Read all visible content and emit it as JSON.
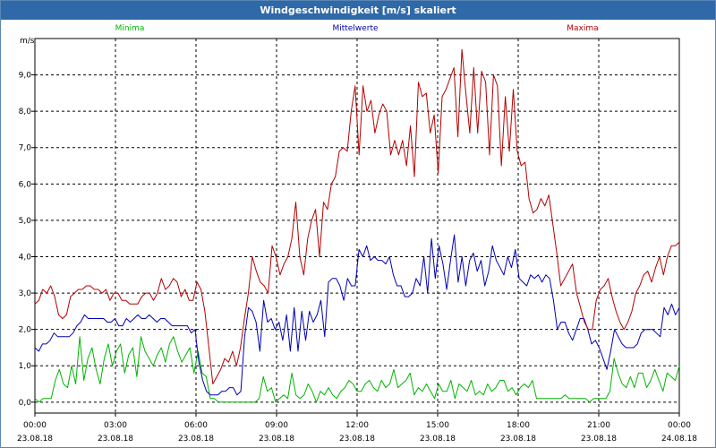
{
  "window": {
    "title": "Windgeschwindigkeit [m/s] skaliert"
  },
  "chart_data": {
    "type": "line",
    "ylabel": "m/s",
    "ylim": [
      -0.3,
      10.0
    ],
    "yticks": [
      "0,0",
      "1,0",
      "2,0",
      "3,0",
      "4,0",
      "5,0",
      "6,0",
      "7,0",
      "8,0",
      "9,0"
    ],
    "xlim": [
      0,
      24
    ],
    "xticks": [
      {
        "time": "00:00",
        "date": "23.08.18"
      },
      {
        "time": "03:00",
        "date": "23.08.18"
      },
      {
        "time": "06:00",
        "date": "23.08.18"
      },
      {
        "time": "09:00",
        "date": "23.08.18"
      },
      {
        "time": "12:00",
        "date": "23.08.18"
      },
      {
        "time": "15:00",
        "date": "23.08.18"
      },
      {
        "time": "18:00",
        "date": "23.08.18"
      },
      {
        "time": "21:00",
        "date": "23.08.18"
      },
      {
        "time": "00:00",
        "date": "24.08.18"
      }
    ],
    "grid": true,
    "legend_position": "top",
    "series": [
      {
        "name": "Minima",
        "color": "#00b400",
        "values": [
          0.1,
          0.0,
          0.1,
          0.1,
          0.1,
          0.6,
          0.9,
          0.5,
          0.4,
          1.0,
          0.5,
          1.8,
          0.6,
          1.2,
          1.5,
          0.9,
          0.5,
          1.2,
          1.6,
          1.0,
          1.4,
          1.6,
          0.8,
          1.3,
          1.5,
          0.7,
          1.8,
          1.4,
          1.2,
          1.0,
          1.3,
          1.5,
          1.1,
          1.6,
          1.8,
          1.4,
          1.1,
          1.3,
          1.5,
          0.8,
          1.4,
          0.8,
          0.7,
          0.1,
          0.1,
          0.0,
          0.0,
          0.0,
          0.0,
          0.0,
          0.0,
          0.0,
          0.0,
          0.0,
          0.0,
          0.1,
          0.7,
          0.3,
          0.4,
          0.0,
          0.1,
          0.2,
          0.1,
          0.8,
          0.2,
          0.1,
          0.2,
          0.5,
          0.3,
          0.0,
          0.3,
          0.2,
          0.4,
          0.2,
          0.1,
          0.3,
          0.4,
          0.6,
          0.5,
          0.3,
          0.3,
          0.5,
          0.6,
          0.4,
          0.3,
          0.6,
          0.4,
          0.5,
          0.9,
          0.4,
          0.5,
          0.6,
          0.8,
          0.2,
          0.4,
          0.3,
          0.5,
          0.3,
          0.1,
          0.5,
          0.3,
          0.3,
          0.6,
          0.1,
          0.5,
          0.4,
          0.3,
          0.6,
          0.2,
          0.3,
          0.2,
          0.5,
          0.3,
          0.4,
          0.6,
          0.6,
          0.3,
          0.4,
          0.2,
          0.4,
          0.5,
          0.4,
          0.6,
          0.1,
          0.1,
          0.1,
          0.1,
          0.1,
          0.1,
          0.1,
          0.2,
          0.1,
          0.1,
          0.1,
          0.1,
          0.1,
          0.0,
          0.1,
          0.1,
          0.1,
          0.1,
          0.3,
          1.2,
          0.8,
          0.5,
          0.4,
          0.7,
          0.4,
          0.8,
          0.8,
          0.4,
          0.6,
          0.9,
          0.6,
          0.3,
          0.8,
          0.7,
          0.6,
          1.0
        ]
      },
      {
        "name": "Mittelwerte",
        "color": "#0000b4",
        "values": [
          1.5,
          1.4,
          1.6,
          1.6,
          1.7,
          1.9,
          1.8,
          1.8,
          1.8,
          1.8,
          1.9,
          2.1,
          2.2,
          2.4,
          2.3,
          2.3,
          2.3,
          2.3,
          2.3,
          2.2,
          2.2,
          2.3,
          2.1,
          2.1,
          2.3,
          2.2,
          2.3,
          2.4,
          2.3,
          2.3,
          2.4,
          2.3,
          2.2,
          2.3,
          2.3,
          2.2,
          2.1,
          2.1,
          2.1,
          2.1,
          2.1,
          1.9,
          2.0,
          1.1,
          0.6,
          0.3,
          0.2,
          0.2,
          0.2,
          0.3,
          0.3,
          0.4,
          0.4,
          0.2,
          0.3,
          1.8,
          2.6,
          2.5,
          2.2,
          1.4,
          2.8,
          2.2,
          2.3,
          2.0,
          2.2,
          1.7,
          2.4,
          1.4,
          2.6,
          1.4,
          2.5,
          1.7,
          2.5,
          2.2,
          2.4,
          2.8,
          1.8,
          3.3,
          3.4,
          3.4,
          3.2,
          2.8,
          3.4,
          3.2,
          3.2,
          4.2,
          4.0,
          4.3,
          3.9,
          4.0,
          3.9,
          3.9,
          3.8,
          4.0,
          3.5,
          3.2,
          3.2,
          2.9,
          2.9,
          3.0,
          3.4,
          3.2,
          4.0,
          3.0,
          4.5,
          3.4,
          4.3,
          3.8,
          3.1,
          3.9,
          4.6,
          3.3,
          4.0,
          3.2,
          3.9,
          4.1,
          3.6,
          3.9,
          3.2,
          3.6,
          4.3,
          3.9,
          3.7,
          3.5,
          4.0,
          3.7,
          4.2,
          3.4,
          3.3,
          3.2,
          3.5,
          3.4,
          3.5,
          3.3,
          3.5,
          3.4,
          2.8,
          2.0,
          2.2,
          2.2,
          1.9,
          1.7,
          2.0,
          2.3,
          2.3,
          2.0,
          1.6,
          1.7,
          1.5,
          1.2,
          0.9,
          1.4,
          2.0,
          1.8,
          1.6,
          1.5,
          1.5,
          1.5,
          1.6,
          1.9,
          2.0,
          2.0,
          2.0,
          1.9,
          1.8,
          2.6,
          2.4,
          2.7,
          2.4,
          2.6
        ]
      },
      {
        "name": "Maxima",
        "color": "#b40000",
        "values": [
          2.7,
          2.8,
          3.1,
          3.0,
          3.2,
          2.9,
          2.4,
          2.3,
          2.4,
          2.9,
          3.0,
          3.1,
          3.1,
          3.2,
          3.2,
          3.1,
          3.1,
          3.0,
          3.1,
          2.8,
          3.0,
          3.0,
          2.8,
          2.8,
          2.7,
          2.7,
          2.7,
          2.9,
          3.0,
          3.0,
          2.8,
          3.0,
          3.4,
          3.1,
          3.2,
          3.4,
          3.3,
          2.9,
          3.1,
          2.8,
          2.8,
          3.3,
          3.1,
          2.5,
          1.5,
          0.5,
          0.7,
          0.9,
          1.2,
          1.1,
          1.4,
          1.0,
          1.5,
          2.3,
          3.0,
          4.0,
          3.6,
          3.3,
          3.2,
          3.0,
          4.3,
          4.0,
          3.5,
          3.8,
          4.0,
          4.5,
          5.5,
          4.0,
          3.5,
          4.5,
          5.0,
          5.3,
          4.0,
          5.5,
          5.3,
          6.0,
          6.2,
          6.9,
          7.0,
          6.9,
          8.0,
          8.7,
          6.8,
          8.7,
          8.0,
          8.3,
          7.4,
          7.9,
          8.2,
          8.0,
          6.8,
          7.2,
          6.8,
          7.2,
          6.5,
          7.6,
          6.2,
          8.8,
          8.4,
          8.5,
          7.4,
          7.9,
          6.3,
          8.4,
          8.6,
          8.9,
          9.2,
          7.3,
          9.7,
          8.5,
          7.4,
          9.2,
          7.4,
          9.1,
          8.8,
          6.8,
          9.0,
          8.7,
          6.5,
          8.4,
          6.9,
          8.6,
          6.9,
          6.5,
          6.6,
          5.6,
          5.2,
          5.3,
          5.6,
          5.4,
          5.7,
          4.9,
          4.1,
          3.2,
          3.4,
          3.6,
          3.8,
          3.0,
          2.6,
          2.2,
          2.0,
          2.0,
          2.8,
          3.1,
          3.2,
          3.4,
          2.9,
          2.5,
          2.2,
          2.0,
          2.2,
          2.5,
          3.0,
          3.2,
          3.5,
          3.6,
          3.3,
          3.7,
          4.0,
          3.5,
          4.0,
          4.3,
          4.3,
          4.4
        ]
      }
    ]
  }
}
